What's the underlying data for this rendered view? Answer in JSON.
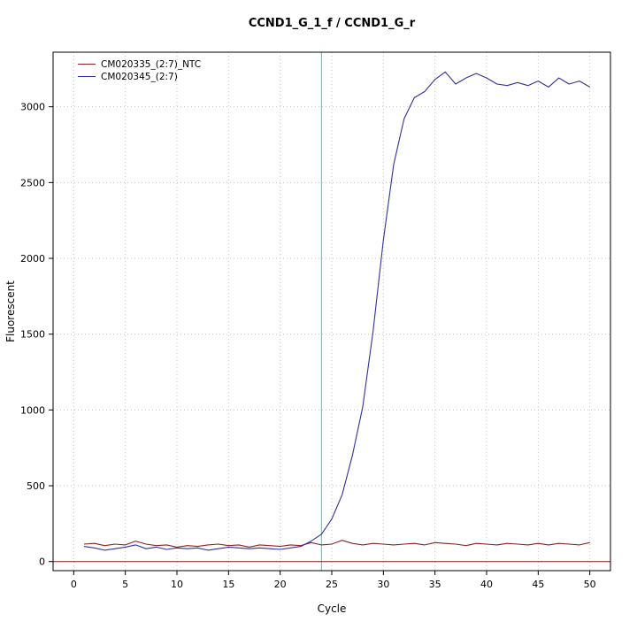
{
  "chart_data": {
    "type": "line",
    "title": "CCND1_G_1_f / CCND1_G_r",
    "xlabel": "Cycle",
    "ylabel": "Fluorescent",
    "xlim": [
      -2,
      52
    ],
    "ylim": [
      -60,
      3360
    ],
    "x_ticks": [
      0,
      5,
      10,
      15,
      20,
      25,
      30,
      35,
      40,
      45,
      50
    ],
    "y_ticks": [
      0,
      500,
      1000,
      1500,
      2000,
      2500,
      3000
    ],
    "grid": "dotted",
    "grid_color": "#c4c4c4",
    "legend_position": "top-left",
    "threshold_line": {
      "orientation": "vertical",
      "x": 24,
      "color": "#00e0e0"
    },
    "baseline": {
      "orientation": "horizontal",
      "y": 0,
      "color": "#8b1a1a"
    },
    "x": [
      1,
      2,
      3,
      4,
      5,
      6,
      7,
      8,
      9,
      10,
      11,
      12,
      13,
      14,
      15,
      16,
      17,
      18,
      19,
      20,
      21,
      22,
      23,
      24,
      25,
      26,
      27,
      28,
      29,
      30,
      31,
      32,
      33,
      34,
      35,
      36,
      37,
      38,
      39,
      40,
      41,
      42,
      43,
      44,
      45,
      46,
      47,
      48,
      49,
      50
    ],
    "series": [
      {
        "name": "CM020335_(2:7)_NTC",
        "color": "#8b2323",
        "values": [
          115,
          120,
          105,
          115,
          110,
          135,
          115,
          105,
          110,
          95,
          105,
          100,
          110,
          115,
          105,
          110,
          95,
          110,
          105,
          100,
          110,
          105,
          125,
          110,
          115,
          140,
          120,
          110,
          120,
          115,
          110,
          115,
          120,
          110,
          125,
          120,
          115,
          105,
          120,
          115,
          110,
          120,
          115,
          110,
          120,
          110,
          120,
          115,
          110,
          125
        ]
      },
      {
        "name": "CM020345_(2:7)",
        "color": "#31319b",
        "values": [
          100,
          90,
          75,
          85,
          95,
          110,
          85,
          95,
          80,
          90,
          85,
          90,
          75,
          85,
          95,
          90,
          85,
          90,
          85,
          80,
          90,
          100,
          135,
          180,
          280,
          440,
          700,
          1020,
          1520,
          2120,
          2620,
          2920,
          3060,
          3100,
          3180,
          3230,
          3150,
          3190,
          3220,
          3190,
          3150,
          3140,
          3160,
          3140,
          3170,
          3130,
          3190,
          3150,
          3170,
          3130
        ]
      }
    ]
  }
}
